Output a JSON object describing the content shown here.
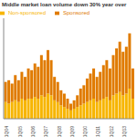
{
  "chart_data": {
    "type": "bar",
    "title": "Middle market loan volume down 30% year over",
    "stacked": true,
    "legend": "top-left",
    "tick_labels": "x",
    "categories": [
      "1Q04",
      null,
      null,
      null,
      "1Q05",
      null,
      null,
      null,
      "1Q06",
      null,
      null,
      null,
      "1Q07",
      null,
      null,
      null,
      "1Q08",
      null,
      null,
      null,
      "1Q09",
      null,
      null,
      null,
      "1Q10",
      null,
      null,
      null,
      "1Q11",
      null,
      null,
      null,
      "1Q12",
      null,
      null,
      null,
      "1Q13",
      null,
      null,
      null
    ],
    "ylim": [
      0,
      60
    ],
    "series": [
      {
        "name": "Non-sponsored",
        "color": "#f7b500",
        "values": [
          10,
          9,
          10,
          11,
          10,
          12,
          11,
          12,
          12,
          13,
          12,
          14,
          13,
          15,
          14,
          11,
          10,
          8,
          7,
          6,
          5,
          6,
          7,
          8,
          9,
          10,
          11,
          12,
          10,
          11,
          12,
          13,
          11,
          14,
          15,
          16,
          14,
          15,
          18,
          12
        ]
      },
      {
        "name": "Sponsored",
        "color": "#e07b00",
        "values": [
          12,
          14,
          11,
          15,
          13,
          16,
          14,
          18,
          17,
          20,
          19,
          24,
          22,
          26,
          21,
          14,
          12,
          9,
          8,
          6,
          4,
          5,
          7,
          10,
          11,
          14,
          16,
          18,
          15,
          17,
          20,
          22,
          19,
          24,
          27,
          30,
          26,
          28,
          33,
          18
        ]
      }
    ]
  }
}
